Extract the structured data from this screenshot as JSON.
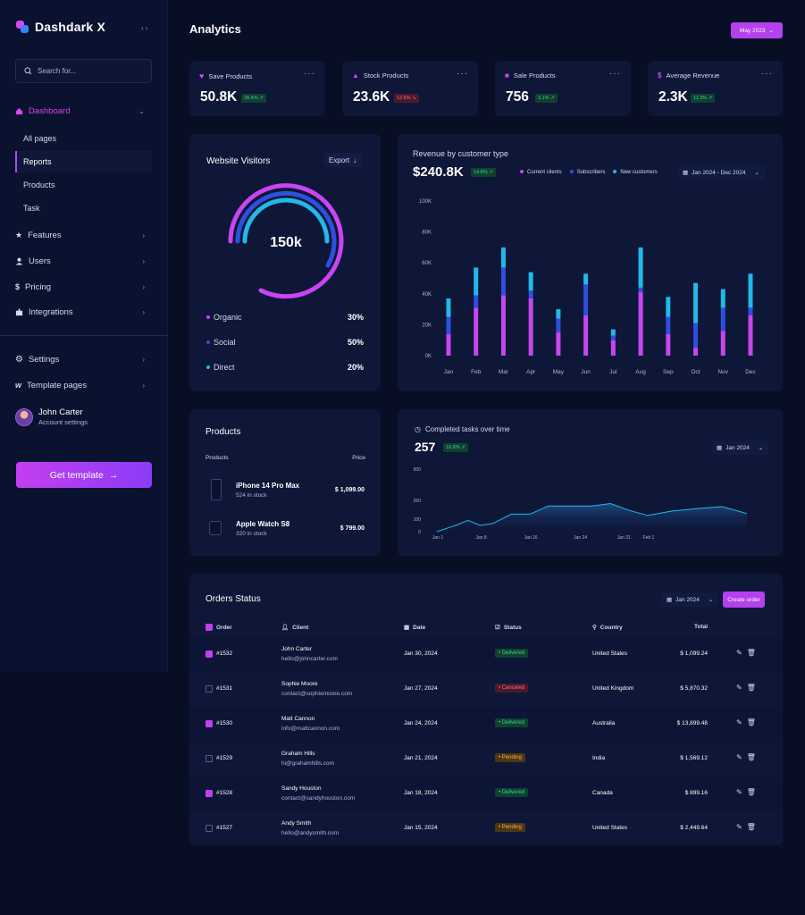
{
  "brand": {
    "name": "Dashdark X"
  },
  "search": {
    "placeholder": "Search for..."
  },
  "sidebar": {
    "dashboard": "Dashboard",
    "sub_items": [
      "All pages",
      "Reports",
      "Products",
      "Task"
    ],
    "items": [
      "Features",
      "Users",
      "Pricing",
      "Integrations"
    ],
    "bottom_items": [
      "Settings",
      "Template pages"
    ],
    "user": {
      "name": "John Carter",
      "subtitle": "Account settings"
    },
    "cta": "Get template"
  },
  "header": {
    "title": "Analytics",
    "date_button": "May 2023"
  },
  "stats": [
    {
      "title": "Save Products",
      "value": "50.8K",
      "change": "28.4%",
      "dir": "up"
    },
    {
      "title": "Stock Products",
      "value": "23.6K",
      "change": "12.6%",
      "dir": "down"
    },
    {
      "title": "Sale Products",
      "value": "756",
      "change": "3.1%",
      "dir": "up"
    },
    {
      "title": "Average Revenue",
      "value": "2.3K",
      "change": "11.3%",
      "dir": "up"
    }
  ],
  "visitors": {
    "title": "Website Visitors",
    "export": "Export",
    "total": "150k",
    "sources": [
      {
        "name": "Organic",
        "pct": "30%",
        "value": 30,
        "color": "#c945f0"
      },
      {
        "name": "Social",
        "pct": "50%",
        "value": 50,
        "color": "#2f4fe0"
      },
      {
        "name": "Direct",
        "pct": "20%",
        "value": 20,
        "color": "#22b8e8"
      }
    ]
  },
  "revenue": {
    "title": "Revenue by customer type",
    "value": "$240.8K",
    "change": "14.8%",
    "legend": [
      "Current clients",
      "Subscribers",
      "New customers"
    ],
    "range": "Jan 2024 - Dec 2024"
  },
  "tasks": {
    "title": "Completed tasks over time",
    "value": "257",
    "change": "16.8%",
    "range": "Jan 2024"
  },
  "products": {
    "title": "Products",
    "col_product": "Products",
    "col_price": "Price",
    "items": [
      {
        "name": "iPhone 14 Pro Max",
        "stock": "524 in stock",
        "price": "$ 1,099.00"
      },
      {
        "name": "Apple Watch S8",
        "stock": "320 in stock",
        "price": "$ 799.00"
      }
    ]
  },
  "orders": {
    "title": "Orders Status",
    "range": "Jan 2024",
    "create": "Create order",
    "headers": {
      "order": "Order",
      "client": "Client",
      "date": "Date",
      "status": "Status",
      "country": "Country",
      "total": "Total"
    },
    "rows": [
      {
        "id": "#1532",
        "checked": true,
        "name": "John Carter",
        "email": "hello@johncarter.com",
        "date": "Jan 30, 2024",
        "status": "Delivered",
        "country": "United States",
        "total": "$ 1,099.24"
      },
      {
        "id": "#1531",
        "checked": false,
        "name": "Sophie Moore",
        "email": "contact@sophiemoore.com",
        "date": "Jan 27, 2024",
        "status": "Canceled",
        "country": "United Kingdom",
        "total": "$ 5,870.32"
      },
      {
        "id": "#1530",
        "checked": true,
        "name": "Matt Cannon",
        "email": "info@mattcannon.com",
        "date": "Jan 24, 2024",
        "status": "Delivered",
        "country": "Australia",
        "total": "$ 13,899.48"
      },
      {
        "id": "#1529",
        "checked": false,
        "name": "Graham Hills",
        "email": "hi@grahamhills.com",
        "date": "Jan 21, 2024",
        "status": "Pending",
        "country": "India",
        "total": "$ 1,569.12"
      },
      {
        "id": "#1528",
        "checked": true,
        "name": "Sandy Houston",
        "email": "contact@sandyhouston.com",
        "date": "Jan 18, 2024",
        "status": "Delivered",
        "country": "Canada",
        "total": "$ 899.16"
      },
      {
        "id": "#1527",
        "checked": false,
        "name": "Andy Smith",
        "email": "hello@andysmith.com",
        "date": "Jan 15, 2024",
        "status": "Pending",
        "country": "United States",
        "total": "$ 2,449.64"
      }
    ]
  },
  "chart_data": [
    {
      "type": "bar",
      "stacked": true,
      "categories": [
        "Jan",
        "Feb",
        "Mar",
        "Apr",
        "May",
        "Jun",
        "Jul",
        "Aug",
        "Sep",
        "Oct",
        "Nov",
        "Dec"
      ],
      "series": [
        {
          "name": "Current clients",
          "color": "#c945f0",
          "values": [
            14000,
            31000,
            39000,
            37000,
            15000,
            26000,
            10000,
            41000,
            14000,
            5000,
            16000,
            26000
          ]
        },
        {
          "name": "Subscribers",
          "color": "#2f4fe0",
          "values": [
            11000,
            8000,
            18000,
            5000,
            9000,
            20000,
            3000,
            3000,
            11000,
            16000,
            15000,
            5000
          ]
        },
        {
          "name": "New customers",
          "color": "#22b8e8",
          "values": [
            12000,
            18000,
            13000,
            12000,
            6000,
            7000,
            4000,
            26000,
            13000,
            26000,
            12000,
            22000
          ]
        }
      ],
      "ytick_labels": [
        "0K",
        "20K",
        "40K",
        "60K",
        "80K",
        "100K"
      ],
      "yticks": [
        0,
        20000,
        40000,
        60000,
        80000,
        100000
      ],
      "ylim": [
        0,
        100000
      ],
      "legend": "top-right"
    },
    {
      "type": "area",
      "x_labels": [
        "Jan 1",
        "Jan 8",
        "Jan 16",
        "Jan 24",
        "Jan 31",
        "Feb 1"
      ],
      "x_positions": [
        1,
        8,
        16,
        24,
        31,
        35
      ],
      "points": [
        [
          1,
          0
        ],
        [
          4,
          50
        ],
        [
          6,
          90
        ],
        [
          8,
          50
        ],
        [
          10,
          65
        ],
        [
          13,
          140
        ],
        [
          16,
          140
        ],
        [
          19,
          205
        ],
        [
          23,
          205
        ],
        [
          26,
          205
        ],
        [
          29,
          225
        ],
        [
          32,
          170
        ],
        [
          35,
          130
        ],
        [
          39,
          165
        ],
        [
          43,
          185
        ],
        [
          47,
          200
        ],
        [
          51,
          145
        ]
      ],
      "yticks": [
        0,
        100,
        250,
        500
      ],
      "ylim": [
        0,
        500
      ],
      "color": "#22b8e8"
    }
  ]
}
